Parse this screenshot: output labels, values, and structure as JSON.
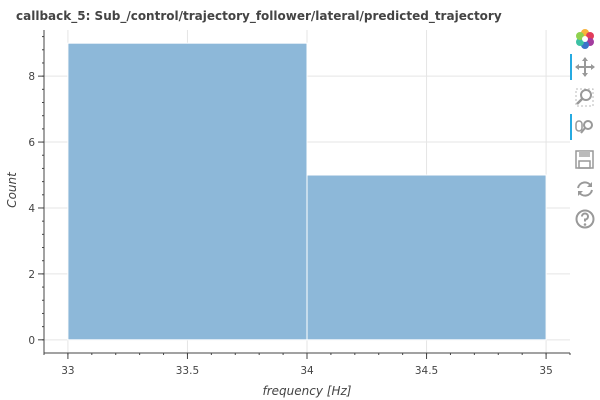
{
  "chart_data": {
    "type": "bar",
    "title": "callback_5: Sub_/control/trajectory_follower/lateral/predicted_trajectory",
    "xlabel": "frequency [Hz]",
    "ylabel": "Count",
    "bins": [
      {
        "left": 33,
        "right": 34,
        "count": 9
      },
      {
        "left": 34,
        "right": 35,
        "count": 5
      }
    ],
    "xlim": [
      32.9,
      35.1
    ],
    "ylim": [
      -0.4,
      9.4
    ],
    "xticks": [
      33,
      33.5,
      34,
      34.5,
      35
    ],
    "xtick_labels": [
      "33",
      "33.5",
      "34",
      "34.5",
      "35"
    ],
    "yticks": [
      0,
      2,
      4,
      6,
      8
    ],
    "ytick_labels": [
      "0",
      "2",
      "4",
      "6",
      "8"
    ],
    "grid": true,
    "bar_color": "#8db8d9",
    "bar_edge_color": "#ffffff"
  },
  "toolbar": {
    "tools": [
      {
        "name": "bokeh-logo-icon",
        "active": false
      },
      {
        "name": "pan-icon",
        "active": true
      },
      {
        "name": "box-zoom-icon",
        "active": false
      },
      {
        "name": "wheel-zoom-icon",
        "active": true
      },
      {
        "name": "save-icon",
        "active": false
      },
      {
        "name": "reset-icon",
        "active": false
      },
      {
        "name": "help-icon",
        "active": false
      }
    ],
    "accent": "#26aae1"
  }
}
